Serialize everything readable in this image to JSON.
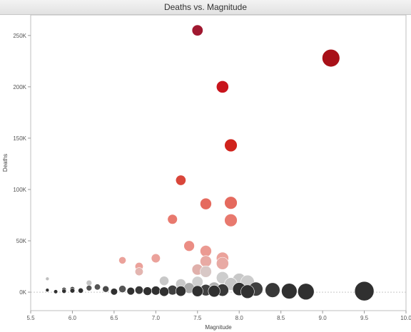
{
  "chart_data": {
    "type": "scatter",
    "title": "Deaths vs. Magnitude",
    "xlabel": "Magnitude",
    "ylabel": "Deaths",
    "xlim": [
      5.5,
      10.0
    ],
    "ylim": [
      -18000,
      270000
    ],
    "x_ticks": [
      5.5,
      6.0,
      6.5,
      7.0,
      7.5,
      8.0,
      8.5,
      9.0,
      9.5,
      10.0
    ],
    "x_tick_labels": [
      "5.5",
      "6.0",
      "6.5",
      "7.0",
      "7.5",
      "8.0",
      "8.5",
      "9.0",
      "9.5",
      "10.0"
    ],
    "y_ticks": [
      0,
      50000,
      100000,
      150000,
      200000,
      250000
    ],
    "y_tick_labels": [
      "0K",
      "50K",
      "100K",
      "150K",
      "200K",
      "250K"
    ],
    "grid": false,
    "size_encodes": "Magnitude",
    "color_encodes": "Deaths",
    "points": [
      {
        "x": 5.7,
        "y": 13000,
        "color": "#bfbfbf"
      },
      {
        "x": 5.7,
        "y": 2000,
        "color": "#303030"
      },
      {
        "x": 5.8,
        "y": 500,
        "color": "#303030"
      },
      {
        "x": 5.9,
        "y": 1000,
        "color": "#303030"
      },
      {
        "x": 5.9,
        "y": 2500,
        "color": "#303030"
      },
      {
        "x": 6.0,
        "y": 1500,
        "color": "#303030"
      },
      {
        "x": 6.0,
        "y": 3000,
        "color": "#303030"
      },
      {
        "x": 6.1,
        "y": 1500,
        "color": "#303030"
      },
      {
        "x": 6.2,
        "y": 9000,
        "color": "#c4c4c4"
      },
      {
        "x": 6.2,
        "y": 4000,
        "color": "#555555"
      },
      {
        "x": 6.3,
        "y": 5000,
        "color": "#555555"
      },
      {
        "x": 6.4,
        "y": 3000,
        "color": "#4a4a4a"
      },
      {
        "x": 6.5,
        "y": 500,
        "color": "#303030"
      },
      {
        "x": 6.6,
        "y": 31000,
        "color": "#eba29b"
      },
      {
        "x": 6.6,
        "y": 3000,
        "color": "#555555"
      },
      {
        "x": 6.7,
        "y": 1000,
        "color": "#303030"
      },
      {
        "x": 6.8,
        "y": 25000,
        "color": "#eba29b"
      },
      {
        "x": 6.8,
        "y": 20000,
        "color": "#e3b5b0"
      },
      {
        "x": 6.8,
        "y": 2000,
        "color": "#383838"
      },
      {
        "x": 6.9,
        "y": 1000,
        "color": "#303030"
      },
      {
        "x": 7.0,
        "y": 33000,
        "color": "#eba29b"
      },
      {
        "x": 7.0,
        "y": 1500,
        "color": "#303030"
      },
      {
        "x": 7.1,
        "y": 11000,
        "color": "#c8c8c8"
      },
      {
        "x": 7.1,
        "y": 500,
        "color": "#303030"
      },
      {
        "x": 7.2,
        "y": 71000,
        "color": "#e8796e"
      },
      {
        "x": 7.2,
        "y": 2000,
        "color": "#404040"
      },
      {
        "x": 7.3,
        "y": 109000,
        "color": "#d9463a"
      },
      {
        "x": 7.3,
        "y": 8000,
        "color": "#c8c8c8"
      },
      {
        "x": 7.3,
        "y": 1000,
        "color": "#303030"
      },
      {
        "x": 7.4,
        "y": 45000,
        "color": "#eb8d84"
      },
      {
        "x": 7.4,
        "y": 4000,
        "color": "#a8a8a8"
      },
      {
        "x": 7.5,
        "y": 255000,
        "color": "#a01830"
      },
      {
        "x": 7.5,
        "y": 22000,
        "color": "#e0b0ab"
      },
      {
        "x": 7.5,
        "y": 10000,
        "color": "#cfcfcf"
      },
      {
        "x": 7.5,
        "y": 1000,
        "color": "#303030"
      },
      {
        "x": 7.6,
        "y": 86000,
        "color": "#e56a5e"
      },
      {
        "x": 7.6,
        "y": 40000,
        "color": "#eb9a92"
      },
      {
        "x": 7.6,
        "y": 30000,
        "color": "#e8aaa4"
      },
      {
        "x": 7.6,
        "y": 20000,
        "color": "#d8c8c6"
      },
      {
        "x": 7.6,
        "y": 2000,
        "color": "#404040"
      },
      {
        "x": 7.7,
        "y": 4000,
        "color": "#b0b0b0"
      },
      {
        "x": 7.7,
        "y": 1000,
        "color": "#303030"
      },
      {
        "x": 7.8,
        "y": 200000,
        "color": "#c8141c"
      },
      {
        "x": 7.8,
        "y": 33000,
        "color": "#eba29b"
      },
      {
        "x": 7.8,
        "y": 28000,
        "color": "#e8aaa4"
      },
      {
        "x": 7.8,
        "y": 14000,
        "color": "#cdcdcd"
      },
      {
        "x": 7.8,
        "y": 2000,
        "color": "#383838"
      },
      {
        "x": 7.9,
        "y": 143000,
        "color": "#d0231c"
      },
      {
        "x": 7.9,
        "y": 87000,
        "color": "#e56a5e"
      },
      {
        "x": 7.9,
        "y": 70000,
        "color": "#e8796e"
      },
      {
        "x": 7.9,
        "y": 8000,
        "color": "#c6c6c6"
      },
      {
        "x": 8.0,
        "y": 12000,
        "color": "#c8c8c8"
      },
      {
        "x": 8.0,
        "y": 3000,
        "color": "#303030"
      },
      {
        "x": 8.1,
        "y": 10000,
        "color": "#cccccc"
      },
      {
        "x": 8.1,
        "y": 500,
        "color": "#303030"
      },
      {
        "x": 8.2,
        "y": 3000,
        "color": "#404040"
      },
      {
        "x": 8.4,
        "y": 2000,
        "color": "#383838"
      },
      {
        "x": 8.6,
        "y": 1000,
        "color": "#303030"
      },
      {
        "x": 8.8,
        "y": 500,
        "color": "#303030"
      },
      {
        "x": 9.1,
        "y": 228000,
        "color": "#a81018"
      },
      {
        "x": 9.5,
        "y": 1000,
        "color": "#303030"
      }
    ]
  }
}
